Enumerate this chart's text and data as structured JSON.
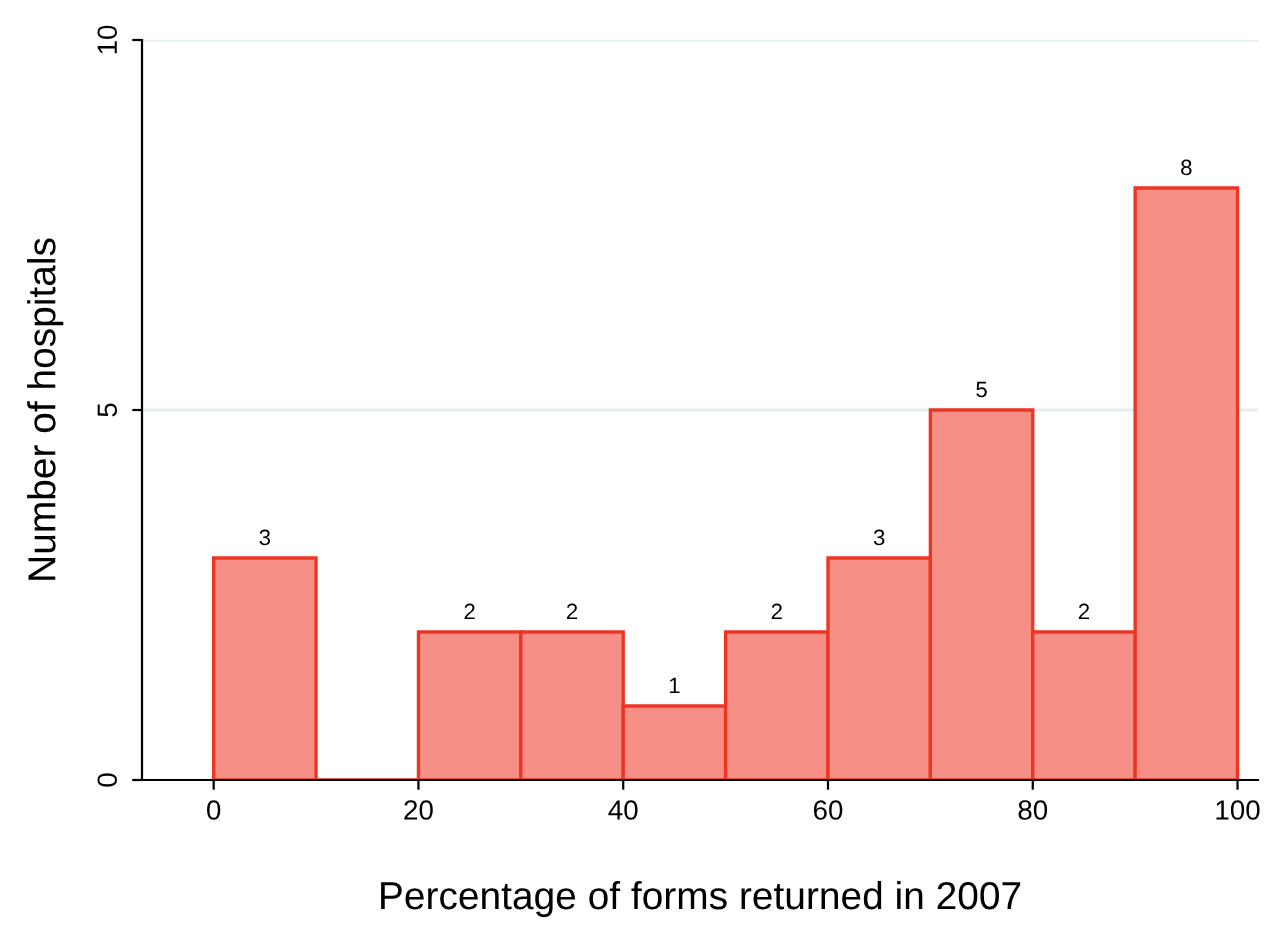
{
  "chart_data": {
    "type": "histogram",
    "xlabel": "Percentage of forms returned in 2007",
    "ylabel": "Number of hospitals",
    "bins": [
      0,
      10,
      20,
      30,
      40,
      50,
      60,
      70,
      80,
      90,
      100
    ],
    "values": [
      3,
      0,
      2,
      2,
      1,
      2,
      3,
      5,
      2,
      8
    ],
    "value_labels": [
      "3",
      null,
      "2",
      "2",
      "1",
      "2",
      "3",
      "5",
      "2",
      "8"
    ],
    "color": "#ee3524",
    "xlim": [
      -7,
      102
    ],
    "xticks": [
      0,
      20,
      40,
      60,
      80,
      100
    ],
    "ylim": [
      0,
      10
    ],
    "yticks": [
      0,
      5,
      10
    ],
    "grid": "y"
  }
}
